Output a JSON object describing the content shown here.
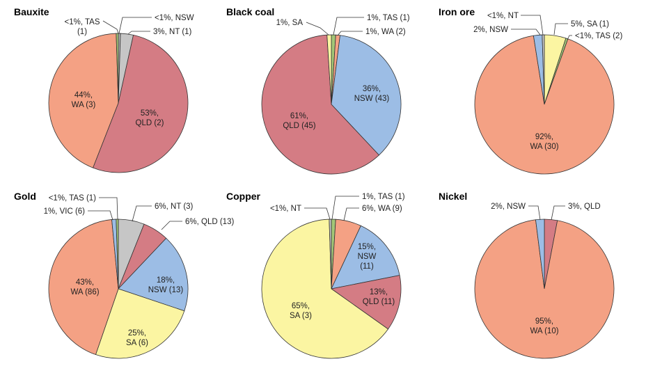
{
  "chart_data": [
    {
      "type": "pie",
      "title": "Bauxite",
      "slices": [
        {
          "value": 0.5,
          "color": "#b4b4b4",
          "label": [
            "<1%, NSW"
          ],
          "placement": "outside"
        },
        {
          "value": 3,
          "color": "#c6c6c6",
          "label": [
            "3%, NT (1)"
          ],
          "placement": "outside"
        },
        {
          "value": 53,
          "color": "#d47c84",
          "label": [
            "53%,",
            "QLD (2)"
          ],
          "placement": "inside"
        },
        {
          "value": 44,
          "color": "#f4a184",
          "label": [
            "44%,",
            "WA (3)"
          ],
          "placement": "inside"
        },
        {
          "value": 0.5,
          "color": "#a3c777",
          "label": [
            "<1%, TAS",
            "(1)"
          ],
          "placement": "outside"
        }
      ]
    },
    {
      "type": "pie",
      "title": "Black coal",
      "slices": [
        {
          "value": 1,
          "color": "#a3c777",
          "label": [
            "1%, TAS (1)"
          ],
          "placement": "outside"
        },
        {
          "value": 1,
          "color": "#f4a184",
          "label": [
            "1%, WA (2)"
          ],
          "placement": "outside"
        },
        {
          "value": 36,
          "color": "#9cbde5",
          "label": [
            "36%,",
            "NSW (43)"
          ],
          "placement": "inside"
        },
        {
          "value": 61,
          "color": "#d47c84",
          "label": [
            "61%,",
            "QLD (45)"
          ],
          "placement": "inside"
        },
        {
          "value": 1,
          "color": "#fbf5a2",
          "label": [
            "1%, SA"
          ],
          "placement": "outside"
        }
      ]
    },
    {
      "type": "pie",
      "title": "Iron ore",
      "slices": [
        {
          "value": 5,
          "color": "#fbf5a2",
          "label": [
            "5%, SA (1)"
          ],
          "placement": "outside"
        },
        {
          "value": 0.5,
          "color": "#a3c777",
          "label": [
            "<1%, TAS (2)"
          ],
          "placement": "outside"
        },
        {
          "value": 92,
          "color": "#f4a184",
          "label": [
            "92%,",
            "WA (30)"
          ],
          "placement": "inside"
        },
        {
          "value": 2,
          "color": "#9cbde5",
          "label": [
            "2%, NSW"
          ],
          "placement": "outside"
        },
        {
          "value": 0.5,
          "color": "#c6c6c6",
          "label": [
            "<1%, NT"
          ],
          "placement": "outside"
        }
      ]
    },
    {
      "type": "pie",
      "title": "Gold",
      "slices": [
        {
          "value": 6,
          "color": "#c6c6c6",
          "label": [
            "6%, NT (3)"
          ],
          "placement": "outside"
        },
        {
          "value": 6,
          "color": "#d47c84",
          "label": [
            "6%, QLD (13)"
          ],
          "placement": "outside"
        },
        {
          "value": 18,
          "color": "#9cbde5",
          "label": [
            "18%,",
            "NSW (13)"
          ],
          "placement": "inside"
        },
        {
          "value": 25,
          "color": "#fbf5a2",
          "label": [
            "25%,",
            "SA (6)"
          ],
          "placement": "inside"
        },
        {
          "value": 43,
          "color": "#f4a184",
          "label": [
            "43%,",
            "WA (86)"
          ],
          "placement": "inside"
        },
        {
          "value": 1,
          "color": "#9cbde5",
          "label": [
            "1%, VIC (6)"
          ],
          "placement": "outside"
        },
        {
          "value": 0.5,
          "color": "#a3c777",
          "label": [
            "<1%, TAS (1)"
          ],
          "placement": "outside"
        }
      ]
    },
    {
      "type": "pie",
      "title": "Copper",
      "slices": [
        {
          "value": 1,
          "color": "#a3c777",
          "label": [
            "1%, TAS (1)"
          ],
          "placement": "outside"
        },
        {
          "value": 6,
          "color": "#f4a184",
          "label": [
            "6%, WA (9)"
          ],
          "placement": "outside"
        },
        {
          "value": 15,
          "color": "#9cbde5",
          "label": [
            "15%,",
            "NSW",
            "(11)"
          ],
          "placement": "inside"
        },
        {
          "value": 13,
          "color": "#d47c84",
          "label": [
            "13%,",
            "QLD (11)"
          ],
          "placement": "inside"
        },
        {
          "value": 65,
          "color": "#fbf5a2",
          "label": [
            "65%,",
            "SA (3)"
          ],
          "placement": "inside"
        },
        {
          "value": 0.5,
          "color": "#c6c6c6",
          "label": [
            "<1%, NT"
          ],
          "placement": "outside"
        }
      ]
    },
    {
      "type": "pie",
      "title": "Nickel",
      "slices": [
        {
          "value": 3,
          "color": "#d47c84",
          "label": [
            "3%, QLD"
          ],
          "placement": "outside"
        },
        {
          "value": 95,
          "color": "#f4a184",
          "label": [
            "95%,",
            "WA (10)"
          ],
          "placement": "inside"
        },
        {
          "value": 2,
          "color": "#9cbde5",
          "label": [
            "2%, NSW"
          ],
          "placement": "outside"
        }
      ]
    }
  ]
}
